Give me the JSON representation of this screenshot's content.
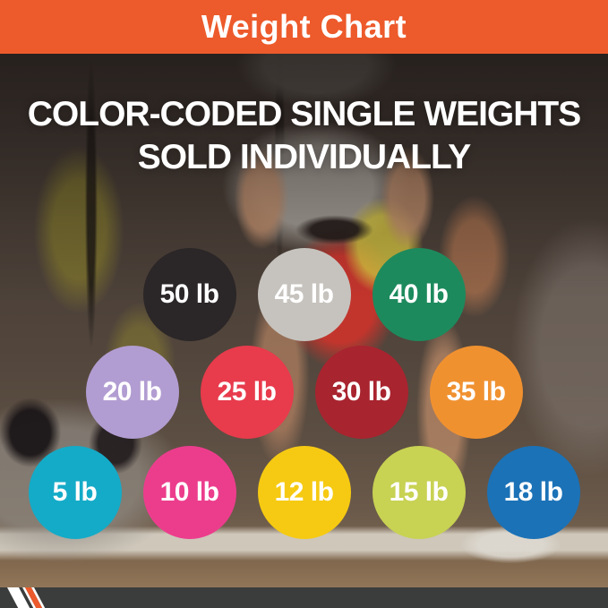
{
  "header": {
    "title": "Weight Chart"
  },
  "headline": {
    "line1": "COLOR-CODED SINGLE WEIGHTS",
    "line2": "SOLD INDIVIDUALLY"
  },
  "weights": {
    "rows": [
      [
        {
          "label": "50 lb",
          "value": 50,
          "color": "#2B2627"
        },
        {
          "label": "45 lb",
          "value": 45,
          "color": "#C6C3BE"
        },
        {
          "label": "40 lb",
          "value": 40,
          "color": "#1D8A5D"
        }
      ],
      [
        {
          "label": "20 lb",
          "value": 20,
          "color": "#B29DD2"
        },
        {
          "label": "25 lb",
          "value": 25,
          "color": "#E83B4C"
        },
        {
          "label": "30 lb",
          "value": 30,
          "color": "#A8242F"
        },
        {
          "label": "35 lb",
          "value": 35,
          "color": "#F09130"
        }
      ],
      [
        {
          "label": "5 lb",
          "value": 5,
          "color": "#14ABC8"
        },
        {
          "label": "10 lb",
          "value": 10,
          "color": "#EC3D8D"
        },
        {
          "label": "12 lb",
          "value": 12,
          "color": "#F6CA12"
        },
        {
          "label": "15 lb",
          "value": 15,
          "color": "#C8D253"
        },
        {
          "label": "18 lb",
          "value": 18,
          "color": "#1B72B7"
        }
      ]
    ]
  },
  "colors": {
    "accent_orange": "#ED5A2B",
    "footer_gray": "#3A3D3C",
    "stripe_white": "#FFFFFF",
    "text_white": "#FFFFFF"
  },
  "chart_data": {
    "type": "table",
    "title": "Weight Chart",
    "subtitle": "COLOR-CODED SINGLE WEIGHTS SOLD INDIVIDUALLY",
    "units": "lb",
    "categories": [
      "50 lb",
      "45 lb",
      "40 lb",
      "20 lb",
      "25 lb",
      "30 lb",
      "35 lb",
      "5 lb",
      "10 lb",
      "12 lb",
      "15 lb",
      "18 lb"
    ],
    "values": [
      50,
      45,
      40,
      20,
      25,
      30,
      35,
      5,
      10,
      12,
      15,
      18
    ],
    "colors": [
      "#2B2627",
      "#C6C3BE",
      "#1D8A5D",
      "#B29DD2",
      "#E83B4C",
      "#A8242F",
      "#F09130",
      "#14ABC8",
      "#EC3D8D",
      "#F6CA12",
      "#C8D253",
      "#1B72B7"
    ],
    "layout": "three centered rows of color-coded circles: [50,45,40] / [20,25,30,35] / [5,10,12,15,18]"
  }
}
